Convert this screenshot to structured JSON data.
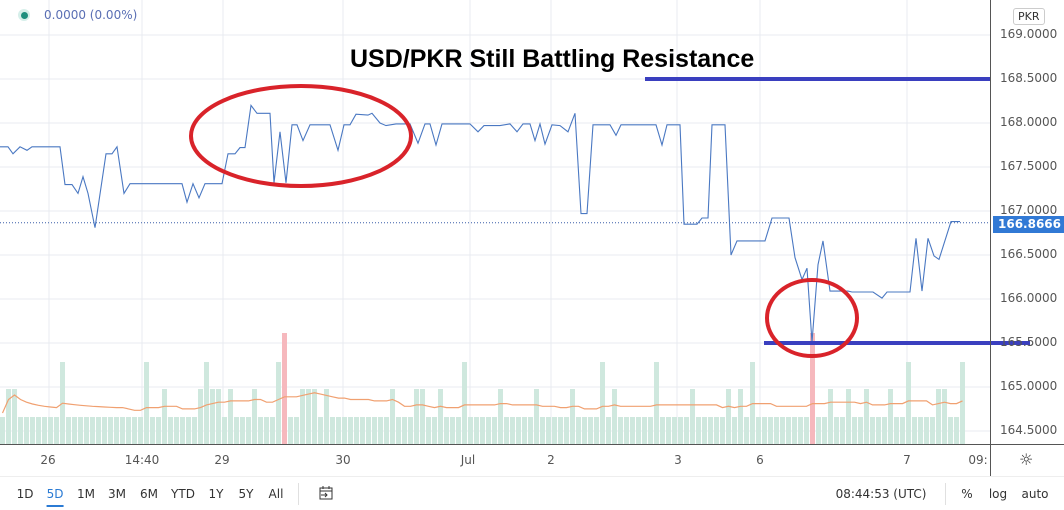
{
  "legend": {
    "value_text": "0.0000 (0.00%)",
    "status_color": "#1e8f7e"
  },
  "annotation": {
    "title": "USD/PKR Still Battling Resistance",
    "resistance_level": 168.5,
    "support_level": 165.5,
    "line_color": "#3a3fbf",
    "ellipse_color": "#d9232a"
  },
  "price_axis": {
    "currency": "PKR",
    "ticks": [
      "169.0000",
      "168.5000",
      "168.0000",
      "167.5000",
      "167.0000",
      "166.5000",
      "166.0000",
      "165.5000",
      "165.0000",
      "164.5000"
    ],
    "last_price": "166.8666",
    "last_price_color": "#3179d5"
  },
  "time_axis": {
    "ticks": [
      "26",
      "14:40",
      "29",
      "30",
      "Jul",
      "2",
      "3",
      "6",
      "7",
      "09:"
    ]
  },
  "toolbar": {
    "ranges": [
      "1D",
      "5D",
      "1M",
      "3M",
      "6M",
      "YTD",
      "1Y",
      "5Y",
      "All"
    ],
    "active_range": "5D",
    "clock": "08:44:53 (UTC)",
    "percent_label": "%",
    "log_label": "log",
    "auto_label": "auto"
  },
  "chart_data": {
    "type": "line",
    "ylim": [
      164.35,
      169.4
    ],
    "line_color": "#4a78c2",
    "points": [
      [
        0,
        167.73
      ],
      [
        1.6,
        167.73
      ],
      [
        2.6,
        167.65
      ],
      [
        4,
        167.73
      ],
      [
        5.4,
        167.69
      ],
      [
        6.4,
        167.73
      ],
      [
        12,
        167.73
      ],
      [
        13,
        167.3
      ],
      [
        14.4,
        167.3
      ],
      [
        15.6,
        167.2
      ],
      [
        16.6,
        167.39
      ],
      [
        17.6,
        167.2
      ],
      [
        19,
        166.81
      ],
      [
        21.2,
        167.65
      ],
      [
        22.4,
        167.65
      ],
      [
        23.4,
        167.73
      ],
      [
        24.8,
        167.2
      ],
      [
        26,
        167.31
      ],
      [
        36.4,
        167.31
      ],
      [
        37.4,
        167.1
      ],
      [
        38.6,
        167.31
      ],
      [
        39.8,
        167.15
      ],
      [
        41,
        167.31
      ],
      [
        44.4,
        167.31
      ],
      [
        45.6,
        167.65
      ],
      [
        47,
        167.65
      ],
      [
        48,
        167.72
      ],
      [
        49,
        167.72
      ],
      [
        50.2,
        168.2
      ],
      [
        51.4,
        168.11
      ],
      [
        54,
        168.11
      ],
      [
        54.8,
        167.32
      ],
      [
        56,
        167.9
      ],
      [
        57.2,
        167.32
      ],
      [
        58.4,
        167.98
      ],
      [
        59.4,
        167.98
      ],
      [
        60.6,
        167.8
      ],
      [
        62,
        167.98
      ],
      [
        66,
        167.98
      ],
      [
        67.6,
        167.69
      ],
      [
        68.8,
        167.98
      ],
      [
        70,
        167.98
      ],
      [
        71.2,
        168.1
      ],
      [
        73.6,
        168.09
      ],
      [
        74.4,
        168.11
      ],
      [
        76,
        168.0
      ],
      [
        77.2,
        167.97
      ],
      [
        79.2,
        167.99
      ],
      [
        82,
        167.99
      ],
      [
        83.6,
        167.77
      ],
      [
        85,
        167.99
      ],
      [
        86,
        167.99
      ],
      [
        87.2,
        167.75
      ],
      [
        88.4,
        167.99
      ],
      [
        94,
        167.99
      ],
      [
        95.6,
        167.9
      ],
      [
        96.8,
        167.97
      ],
      [
        100,
        167.97
      ],
      [
        102,
        167.99
      ],
      [
        103.4,
        167.9
      ],
      [
        104.6,
        167.99
      ],
      [
        106,
        167.99
      ],
      [
        107,
        167.8
      ],
      [
        108,
        167.99
      ],
      [
        109,
        167.76
      ],
      [
        110.4,
        167.98
      ],
      [
        112,
        167.97
      ],
      [
        113.6,
        167.9
      ],
      [
        115,
        168.11
      ],
      [
        116.2,
        166.97
      ],
      [
        117.4,
        166.97
      ],
      [
        118.6,
        167.98
      ],
      [
        122,
        167.98
      ],
      [
        123.2,
        167.86
      ],
      [
        124.2,
        167.98
      ],
      [
        131.2,
        167.98
      ],
      [
        132.4,
        167.75
      ],
      [
        133.4,
        167.98
      ],
      [
        136,
        167.98
      ],
      [
        136.8,
        166.85
      ],
      [
        139.4,
        166.85
      ],
      [
        140.4,
        166.92
      ],
      [
        141.6,
        166.92
      ],
      [
        142.4,
        167.98
      ],
      [
        145,
        167.98
      ],
      [
        146.2,
        166.5
      ],
      [
        147.4,
        166.66
      ],
      [
        153,
        166.66
      ],
      [
        154.4,
        166.92
      ],
      [
        157.8,
        166.92
      ],
      [
        159,
        166.47
      ],
      [
        160.4,
        166.22
      ],
      [
        161.4,
        166.35
      ],
      [
        162.4,
        165.51
      ],
      [
        163.6,
        166.39
      ],
      [
        164.6,
        166.66
      ],
      [
        166,
        166.09
      ],
      [
        169.6,
        166.09
      ],
      [
        170.4,
        166.08
      ],
      [
        174.6,
        166.08
      ],
      [
        176.4,
        166.01
      ],
      [
        177.4,
        166.08
      ],
      [
        182,
        166.08
      ],
      [
        183.2,
        166.69
      ],
      [
        184.4,
        166.09
      ],
      [
        185.6,
        166.69
      ],
      [
        186.8,
        166.49
      ],
      [
        187.8,
        166.45
      ],
      [
        190.2,
        166.88
      ],
      [
        192,
        166.88
      ]
    ],
    "volume": [
      1,
      2,
      2,
      1,
      1,
      1,
      1,
      1,
      1,
      1,
      3,
      1,
      1,
      1,
      1,
      1,
      1,
      1,
      1,
      1,
      1,
      1,
      1,
      1,
      3,
      1,
      1,
      2,
      1,
      1,
      1,
      1,
      1,
      2,
      3,
      2,
      2,
      1,
      2,
      1,
      1,
      1,
      2,
      1,
      1,
      1,
      3,
      4,
      1,
      1,
      2,
      2,
      2,
      1,
      2,
      1,
      1,
      1,
      1,
      1,
      1,
      1,
      1,
      1,
      1,
      2,
      1,
      1,
      1,
      2,
      2,
      1,
      1,
      2,
      1,
      1,
      1,
      3,
      1,
      1,
      1,
      1,
      1,
      2,
      1,
      1,
      1,
      1,
      1,
      2,
      1,
      1,
      1,
      1,
      1,
      2,
      1,
      1,
      1,
      1,
      3,
      1,
      2,
      1,
      1,
      1,
      1,
      1,
      1,
      3,
      1,
      1,
      1,
      1,
      1,
      2,
      1,
      1,
      1,
      1,
      1,
      2,
      1,
      2,
      1,
      3,
      1,
      1,
      1,
      1,
      1,
      1,
      1,
      1,
      1,
      4,
      1,
      1,
      2,
      1,
      1,
      2,
      1,
      1,
      2,
      1,
      1,
      1,
      2,
      1,
      1,
      3,
      1,
      1,
      1,
      1,
      2,
      2,
      1,
      1,
      3
    ],
    "volume_down_bars": [
      47,
      135
    ],
    "volume_up_color": "#cfe8de",
    "volume_down_color": "#f6b8bd",
    "volume_ma_color": "#f0a070"
  }
}
